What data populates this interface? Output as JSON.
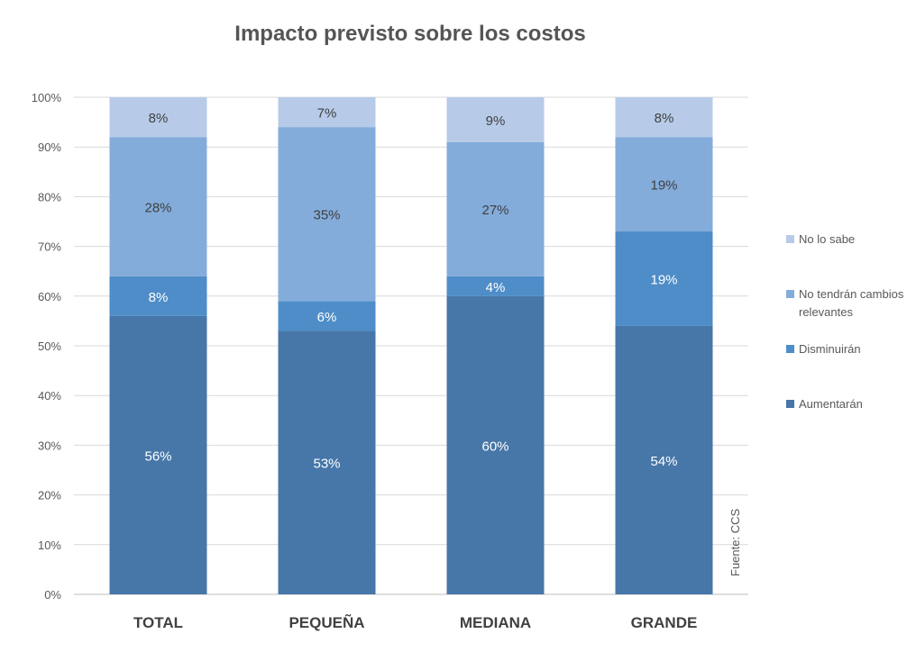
{
  "chart_data": {
    "type": "bar",
    "stacked": true,
    "title": "Impacto previsto sobre los costos",
    "categories": [
      "TOTAL",
      "PEQUEÑA",
      "MEDIANA",
      "GRANDE"
    ],
    "series": [
      {
        "name": "Aumentarán",
        "color": "#4677a8",
        "values": [
          56,
          53,
          60,
          54
        ]
      },
      {
        "name": "Disminuirán",
        "color": "#4e8dc8",
        "values": [
          8,
          6,
          4,
          19
        ]
      },
      {
        "name": "No tendrán cambios relevantes",
        "color": "#83acdb",
        "values": [
          28,
          35,
          27,
          19
        ]
      },
      {
        "name": "No lo sabe",
        "color": "#b7cbe8",
        "values": [
          8,
          7,
          9,
          8
        ]
      }
    ],
    "yticks": [
      "0%",
      "10%",
      "20%",
      "30%",
      "40%",
      "50%",
      "60%",
      "70%",
      "80%",
      "90%",
      "100%"
    ],
    "ylim": [
      0,
      100
    ],
    "grid": true,
    "legend_placement": "right",
    "source": "Fuente: CCS"
  }
}
